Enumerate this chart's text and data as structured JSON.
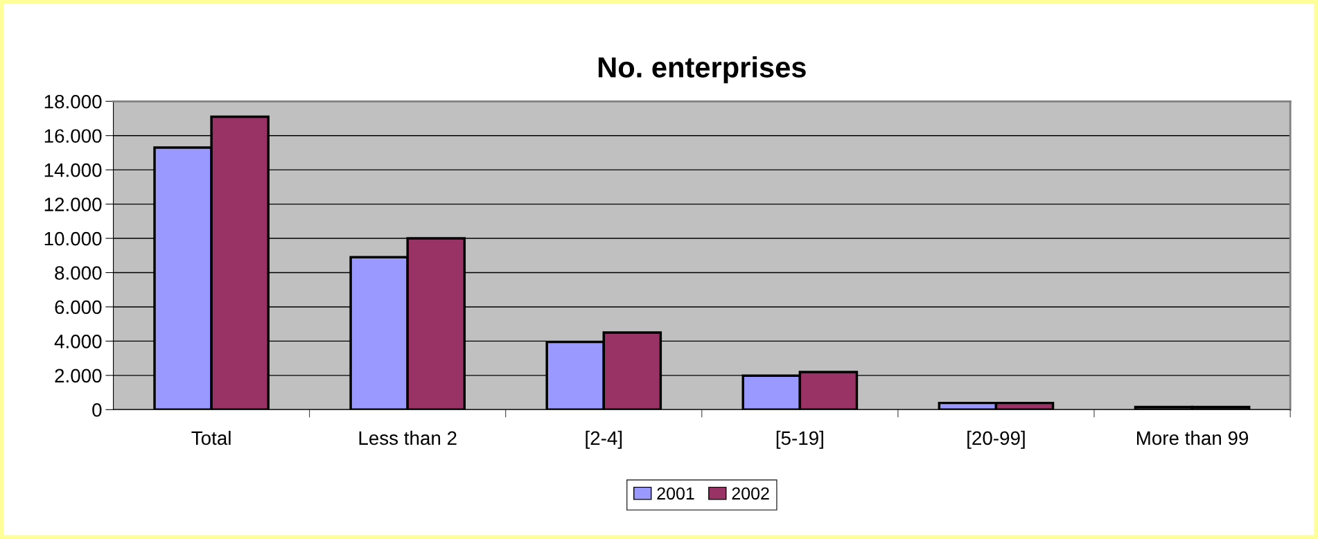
{
  "chart_data": {
    "type": "bar",
    "title": "No. enterprises",
    "categories": [
      "Total",
      "Less than 2",
      "[2-4]",
      "[5-19]",
      "[20-99]",
      "More than 99"
    ],
    "series": [
      {
        "name": "2001",
        "color": "#9999ff",
        "values": [
          15300,
          8900,
          3950,
          1980,
          390,
          150
        ]
      },
      {
        "name": "2002",
        "color": "#993366",
        "values": [
          17100,
          10000,
          4500,
          2200,
          390,
          150
        ]
      }
    ],
    "ylim": [
      0,
      18000
    ],
    "yticks": [
      {
        "value": 0,
        "label": "0"
      },
      {
        "value": 2000,
        "label": "2.000"
      },
      {
        "value": 4000,
        "label": "4.000"
      },
      {
        "value": 6000,
        "label": "6.000"
      },
      {
        "value": 8000,
        "label": "8.000"
      },
      {
        "value": 10000,
        "label": "10.000"
      },
      {
        "value": 12000,
        "label": "12.000"
      },
      {
        "value": 14000,
        "label": "14.000"
      },
      {
        "value": 16000,
        "label": "16.000"
      },
      {
        "value": 18000,
        "label": "18.000"
      }
    ],
    "grid": "y",
    "legend": "bottom"
  }
}
